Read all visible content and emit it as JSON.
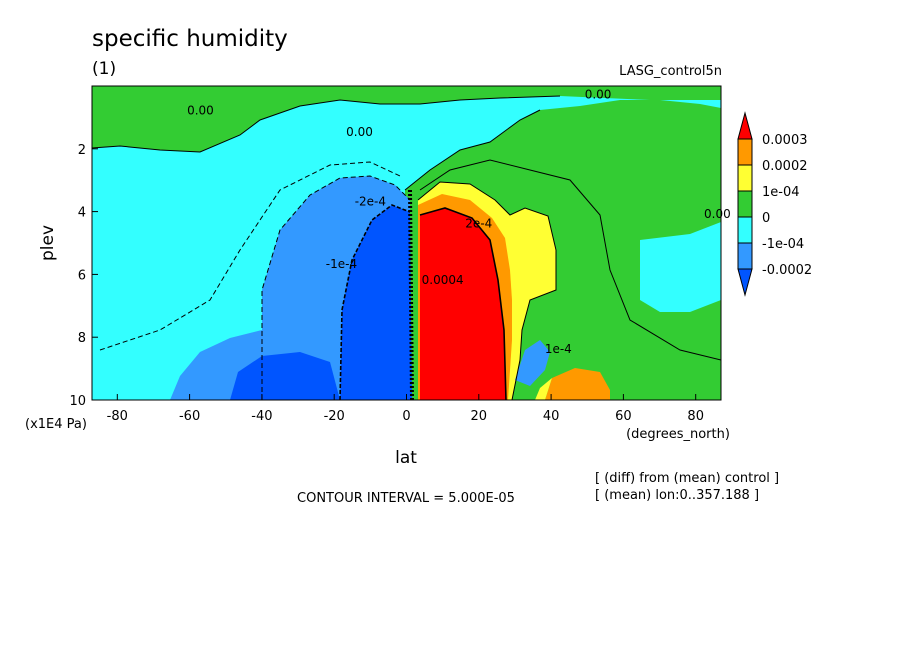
{
  "chart_data": {
    "type": "heatmap",
    "title": "specific humidity",
    "subtitle": "(1)",
    "run_label": "LASG_control5n",
    "xlabel": "lat",
    "xunits": "(degrees_north)",
    "ylabel": "plev",
    "yunits": "(x1E4 Pa)",
    "xlim": [
      -87,
      87
    ],
    "ylim": [
      10,
      0
    ],
    "xticks": [
      -80,
      -60,
      -40,
      -20,
      0,
      20,
      40,
      60,
      80
    ],
    "yticks": [
      2,
      4,
      6,
      8,
      10
    ],
    "xtick_labels": [
      "-80",
      "-60",
      "-40",
      "-20",
      "0",
      "20",
      "40",
      "60",
      "80"
    ],
    "ytick_labels": [
      "2",
      "4",
      "6",
      "8",
      "10"
    ],
    "contour_interval_text": "CONTOUR INTERVAL = 5.000E-05",
    "notes": [
      "[ (diff) from (mean) control ]",
      "[ (mean) lon:0..357.188 ]"
    ],
    "legend": {
      "placement": "right",
      "labels": [
        "0.0003",
        "0.0002",
        "1e-04",
        "0",
        "-1e-04",
        "-0.0002"
      ],
      "colors": [
        "#ff0000",
        "#ff9900",
        "#ffff33",
        "#33cc33",
        "#33ffff",
        "#3399ff",
        "#0055ff"
      ]
    },
    "contour_labels": [
      {
        "text": "0.00",
        "lat": -57,
        "plev": 0.9
      },
      {
        "text": "0.00",
        "lat": -13,
        "plev": 1.6
      },
      {
        "text": "0.00",
        "lat": 53,
        "plev": 0.4
      },
      {
        "text": "0.00",
        "lat": 86,
        "plev": 4.2
      },
      {
        "text": "-2e-4",
        "lat": -10,
        "plev": 3.8
      },
      {
        "text": "-1e-4",
        "lat": -18,
        "plev": 5.8
      },
      {
        "text": "0.0004",
        "lat": 10,
        "plev": 6.3
      },
      {
        "text": "2e-4",
        "lat": 20,
        "plev": 4.5
      },
      {
        "text": "1e-4",
        "lat": 42,
        "plev": 8.5
      }
    ]
  }
}
